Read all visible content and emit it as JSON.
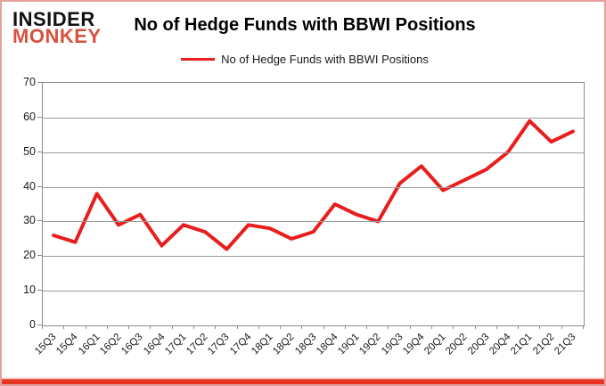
{
  "logo": {
    "line1": "INSIDER",
    "line2": "MONKEY"
  },
  "header": {
    "title": "No of Hedge Funds with BBWI Positions"
  },
  "legend": {
    "label": "No of Hedge Funds with BBWI Positions"
  },
  "colors": {
    "line": "#e81e1e",
    "logo_black": "#121212",
    "logo_red": "#d7513f",
    "grid": "#9b9b9b",
    "axis": "#8c8c8c",
    "frame_border": "#e2a19c",
    "frame_bottom": "#ea3423",
    "text": "#1a1a1a"
  },
  "chart_data": {
    "type": "line",
    "title": "No of Hedge Funds with BBWI Positions",
    "legend_entries": [
      "No of Hedge Funds with BBWI Positions"
    ],
    "legend_position": "top",
    "grid": true,
    "xlabel": "",
    "ylabel": "",
    "ylim": [
      0,
      70
    ],
    "yticks": [
      0,
      10,
      20,
      30,
      40,
      50,
      60,
      70
    ],
    "categories": [
      "15Q3",
      "15Q4",
      "16Q1",
      "16Q2",
      "16Q3",
      "16Q4",
      "17Q1",
      "17Q2",
      "17Q3",
      "17Q4",
      "18Q1",
      "18Q2",
      "18Q3",
      "18Q4",
      "19Q1",
      "19Q2",
      "19Q3",
      "19Q4",
      "20Q1",
      "20Q2",
      "20Q3",
      "20Q4",
      "21Q1",
      "21Q2",
      "21Q3"
    ],
    "series": [
      {
        "name": "No of Hedge Funds with BBWI Positions",
        "color": "#e81e1e",
        "values": [
          26,
          24,
          38,
          29,
          32,
          23,
          29,
          27,
          22,
          29,
          28,
          25,
          27,
          35,
          32,
          30,
          41,
          46,
          39,
          42,
          45,
          50,
          59,
          53,
          56
        ]
      }
    ]
  }
}
